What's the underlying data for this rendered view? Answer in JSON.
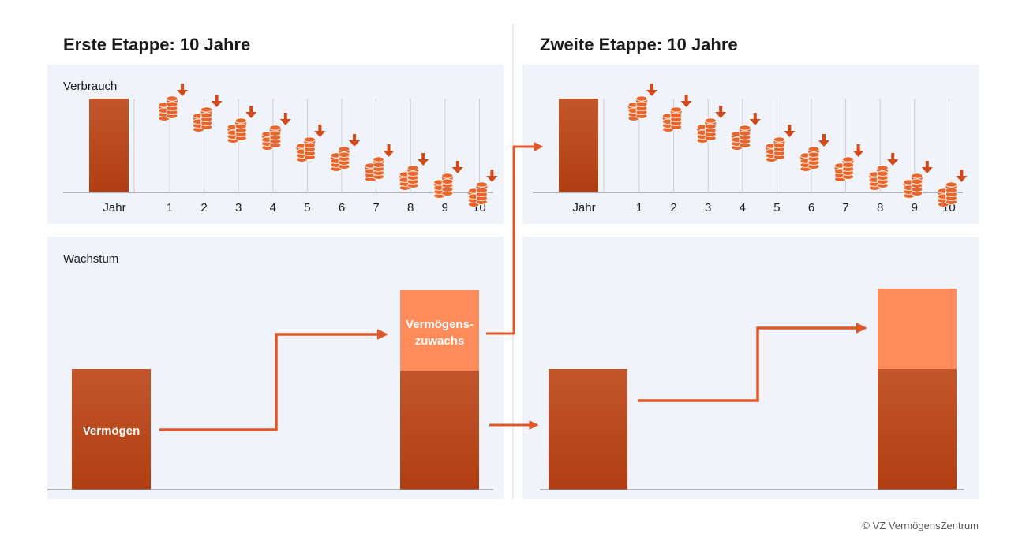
{
  "stage1": {
    "title": "Erste Etappe: 10 Jahre",
    "consumption_label": "Verbrauch",
    "growth_label": "Wachstum",
    "year_label": "Jahr",
    "wealth_label": "Vermögen",
    "growth_top_label_line1": "Vermögens-",
    "growth_top_label_line2": "zuwachs"
  },
  "stage2": {
    "title": "Zweite Etappe: 10 Jahre",
    "year_label": "Jahr"
  },
  "years": [
    "1",
    "2",
    "3",
    "4",
    "5",
    "6",
    "7",
    "8",
    "9",
    "10"
  ],
  "coin_levels": [
    10,
    9,
    8,
    7,
    6,
    5,
    4,
    3,
    2,
    1
  ],
  "copyright": "© VZ VermögensZentrum",
  "colors": {
    "panel_bg": "#f0f3fa",
    "bar_dark_top": "#c2562b",
    "bar_dark_bottom": "#b13e12",
    "bar_light": "#ff8c5a",
    "arrow": "#e0582a",
    "arrow_dark": "#c4471a",
    "coin": "#e8662c",
    "axis": "#8a8a8a",
    "grid": "#cfcfcf",
    "text": "#1a1a1a"
  }
}
